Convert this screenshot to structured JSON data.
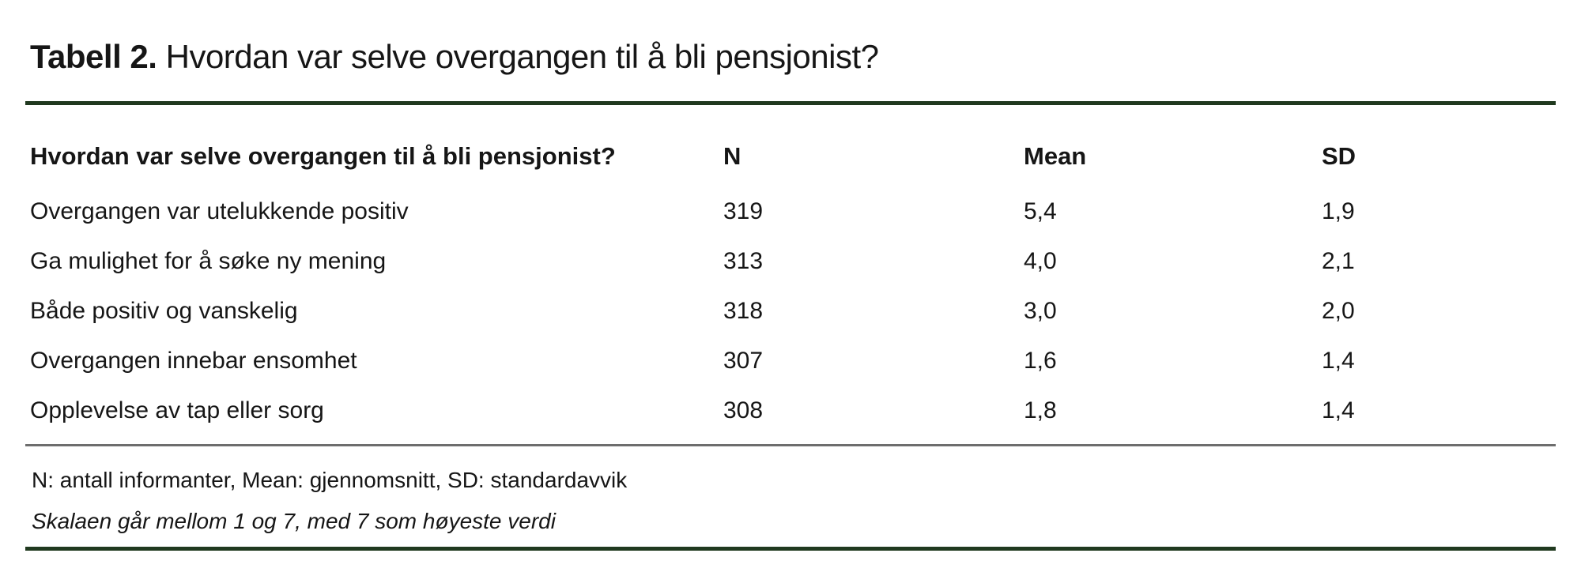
{
  "title": {
    "prefix": "Tabell 2.",
    "text": " Hvordan var selve overgangen til å bli pensjonist?"
  },
  "table": {
    "type": "table",
    "columns": {
      "question": "Hvordan var selve overgangen til å bli pensjonist?",
      "n": "N",
      "mean": "Mean",
      "sd": "SD"
    },
    "rows": [
      {
        "label": "Overgangen var utelukkende positiv",
        "n": "319",
        "mean": "5,4",
        "sd": "1,9"
      },
      {
        "label": "Ga mulighet for å søke ny mening",
        "n": "313",
        "mean": "4,0",
        "sd": "2,1"
      },
      {
        "label": "Både positiv og vanskelig",
        "n": "318",
        "mean": "3,0",
        "sd": "2,0"
      },
      {
        "label": "Overgangen innebar ensomhet",
        "n": "307",
        "mean": "1,6",
        "sd": "1,4"
      },
      {
        "label": "Opplevelse av tap eller sorg",
        "n": "308",
        "mean": "1,8",
        "sd": "1,4"
      }
    ]
  },
  "notes": {
    "abbreviations": "N: antall informanter, Mean: gjennomsnitt, SD: standardavvik",
    "scale": "Skalaen går mellom 1 og 7, med 7 som høyeste verdi"
  },
  "colors": {
    "rule_green": "#20391f",
    "rule_gray": "#6d6d6d",
    "text": "#161616",
    "background": "#ffffff"
  }
}
